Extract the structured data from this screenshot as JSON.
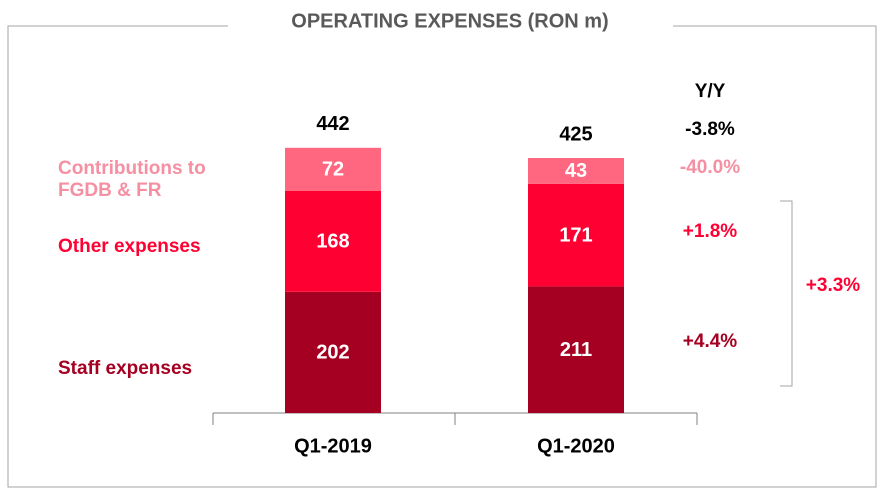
{
  "chart_data": {
    "type": "bar",
    "stacked": true,
    "title": "OPERATING EXPENSES (RON m)",
    "categories": [
      "Q1-2019",
      "Q1-2020"
    ],
    "totals": [
      442,
      425
    ],
    "series": [
      {
        "name": "Staff expenses",
        "color": "#a50021",
        "values": [
          202,
          211
        ],
        "change": "+4.4%"
      },
      {
        "name": "Other expenses",
        "color": "#ff0033",
        "values": [
          168,
          171
        ],
        "change": "+1.8%"
      },
      {
        "name": "Contributions to FGDB & FR",
        "color": "#ff6680",
        "legend_color": "#f58fa2",
        "values": [
          72,
          43
        ],
        "change": "-40.0%"
      }
    ],
    "change_header": "Y/Y",
    "total_change": "-3.8%",
    "combined_change": "+3.3%"
  }
}
